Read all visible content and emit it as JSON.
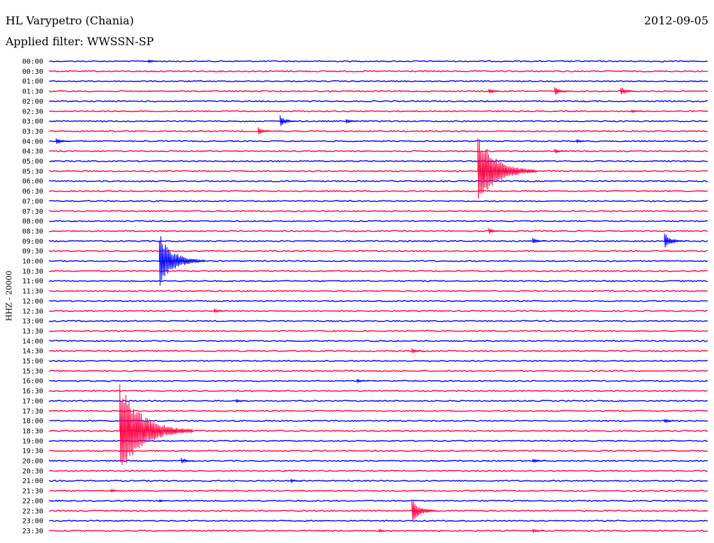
{
  "header": {
    "station": "HL Varypetro (Chania)",
    "date": "2012-09-05",
    "filter": "Applied filter: WWSSN-SP"
  },
  "colors": {
    "blue": "#0000ff",
    "red": "#ff0044"
  },
  "chart_data": {
    "type": "line",
    "title": "HL Varypetro (Chania)",
    "ylabel": "HHZ - 20000",
    "rows": [
      "00:00",
      "00:30",
      "01:00",
      "01:30",
      "02:00",
      "02:30",
      "03:00",
      "03:30",
      "04:00",
      "04:30",
      "05:00",
      "05:30",
      "06:00",
      "06:30",
      "07:00",
      "07:30",
      "08:00",
      "08:30",
      "09:00",
      "09:30",
      "10:00",
      "10:30",
      "11:00",
      "11:30",
      "12:00",
      "12:30",
      "13:00",
      "13:30",
      "14:00",
      "14:30",
      "15:00",
      "15:30",
      "16:00",
      "16:30",
      "17:00",
      "17:30",
      "18:00",
      "18:30",
      "19:00",
      "19:30",
      "20:00",
      "20:30",
      "21:00",
      "21:30",
      "22:00",
      "22:30",
      "23:00",
      "23:30"
    ],
    "row_colors": [
      "blue",
      "red"
    ],
    "events": [
      {
        "row": 0,
        "minute": 4.5,
        "amp": 3
      },
      {
        "row": 3,
        "minute": 20.0,
        "amp": 5
      },
      {
        "row": 3,
        "minute": 23.0,
        "amp": 7
      },
      {
        "row": 3,
        "minute": 26.0,
        "amp": 7
      },
      {
        "row": 5,
        "minute": 26.5,
        "amp": 3
      },
      {
        "row": 6,
        "minute": 10.5,
        "amp": 9
      },
      {
        "row": 6,
        "minute": 13.5,
        "amp": 4
      },
      {
        "row": 7,
        "minute": 9.5,
        "amp": 6
      },
      {
        "row": 8,
        "minute": 0.3,
        "amp": 6
      },
      {
        "row": 8,
        "minute": 24.0,
        "amp": 3
      },
      {
        "row": 9,
        "minute": 23.0,
        "amp": 4
      },
      {
        "row": 11,
        "minute": 19.5,
        "amp": 55
      },
      {
        "row": 18,
        "minute": 28.0,
        "amp": 12
      },
      {
        "row": 18,
        "minute": 22.0,
        "amp": 5
      },
      {
        "row": 17,
        "minute": 20.0,
        "amp": 5
      },
      {
        "row": 20,
        "minute": 5.0,
        "amp": 40
      },
      {
        "row": 25,
        "minute": 7.5,
        "amp": 4
      },
      {
        "row": 29,
        "minute": 16.5,
        "amp": 4
      },
      {
        "row": 32,
        "minute": 14.0,
        "amp": 3
      },
      {
        "row": 34,
        "minute": 8.5,
        "amp": 3
      },
      {
        "row": 36,
        "minute": 28.0,
        "amp": 4
      },
      {
        "row": 37,
        "minute": 3.2,
        "amp": 70
      },
      {
        "row": 40,
        "minute": 6.0,
        "amp": 5
      },
      {
        "row": 40,
        "minute": 22.0,
        "amp": 4
      },
      {
        "row": 42,
        "minute": 11.0,
        "amp": 3
      },
      {
        "row": 43,
        "minute": 2.8,
        "amp": 3
      },
      {
        "row": 44,
        "minute": 5.0,
        "amp": 2
      },
      {
        "row": 45,
        "minute": 16.5,
        "amp": 18
      },
      {
        "row": 47,
        "minute": 15.0,
        "amp": 3
      },
      {
        "row": 47,
        "minute": 22.0,
        "amp": 3
      }
    ],
    "x_range_minutes": [
      0,
      30
    ],
    "grid": false
  }
}
